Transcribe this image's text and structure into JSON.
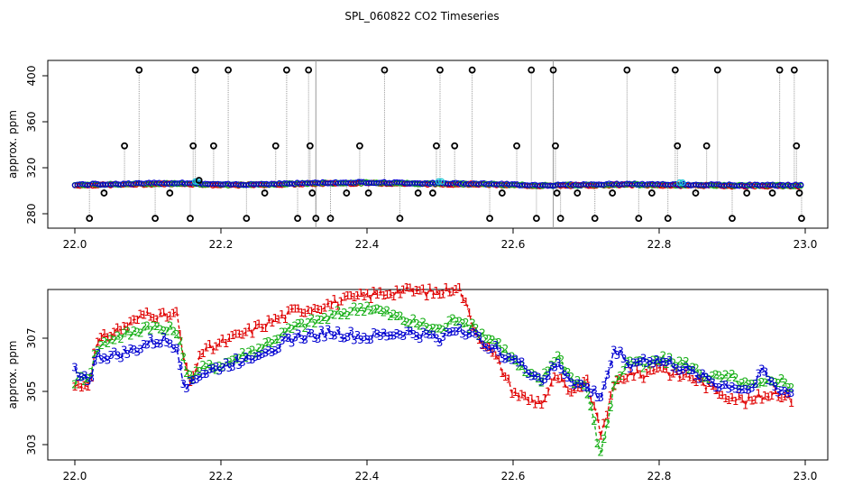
{
  "title": "SPL_060822  CO2 Timeseries",
  "colors": {
    "series1": "#e00000",
    "series2": "#1ab01a",
    "series3": "#0000d0",
    "cyan": "#20c8d8",
    "spike": "#000000",
    "spike_line": "#9a9a9a"
  },
  "chart_data": [
    {
      "type": "scatter",
      "title": "SPL_060822  CO2 Timeseries",
      "xlabel": "",
      "ylabel": "approx. ppm",
      "xlim": [
        22.0,
        23.0
      ],
      "ylim": [
        270,
        410
      ],
      "x_ticks": [
        "22.0",
        "22.2",
        "22.4",
        "22.6",
        "22.8",
        "23.0"
      ],
      "y_ticks": [
        "280",
        "320",
        "360",
        "400"
      ],
      "grid": false,
      "baseline": {
        "x": [
          22.0,
          22.05,
          22.1,
          22.15,
          22.2,
          22.25,
          22.3,
          22.33,
          22.4,
          22.45,
          22.5,
          22.55,
          22.6,
          22.65,
          22.7,
          22.75,
          22.8,
          22.85,
          22.9,
          22.95,
          22.99
        ],
        "y": [
          305,
          305.5,
          306,
          306.5,
          305,
          305.5,
          306,
          306.5,
          307,
          306.5,
          306,
          306,
          305,
          304.5,
          305,
          305.5,
          305,
          305,
          304.5,
          304.5,
          304.5
        ]
      },
      "spikes": {
        "x": [
          22.02,
          22.04,
          22.068,
          22.088,
          22.11,
          22.13,
          22.158,
          22.162,
          22.165,
          22.17,
          22.19,
          22.21,
          22.235,
          22.26,
          22.275,
          22.29,
          22.305,
          22.32,
          22.322,
          22.325,
          22.33,
          22.35,
          22.372,
          22.39,
          22.402,
          22.424,
          22.445,
          22.47,
          22.49,
          22.495,
          22.5,
          22.52,
          22.544,
          22.568,
          22.585,
          22.605,
          22.625,
          22.632,
          22.655,
          22.658,
          22.66,
          22.665,
          22.688,
          22.712,
          22.736,
          22.756,
          22.772,
          22.79,
          22.812,
          22.822,
          22.825,
          22.85,
          22.865,
          22.88,
          22.9,
          22.92,
          22.955,
          22.965,
          22.985,
          22.988,
          22.992,
          22.995
        ],
        "y": [
          276,
          298,
          339,
          405,
          276,
          298,
          276,
          339,
          405,
          309,
          339,
          405,
          276,
          298,
          339,
          405,
          276,
          405,
          339,
          298,
          276,
          276,
          298,
          339,
          298,
          405,
          276,
          298,
          298,
          339,
          405,
          339,
          405,
          276,
          298,
          339,
          405,
          276,
          405,
          339,
          298,
          276,
          298,
          276,
          298,
          405,
          276,
          298,
          276,
          405,
          339,
          298,
          339,
          405,
          276,
          298,
          298,
          405,
          405,
          339,
          298,
          276
        ]
      }
    },
    {
      "type": "line",
      "title": "",
      "xlabel": "",
      "ylabel": "approx. ppm",
      "xlim": [
        22.0,
        23.0
      ],
      "ylim": [
        302.5,
        309
      ],
      "x_ticks": [
        "22.0",
        "22.2",
        "22.4",
        "22.6",
        "22.8",
        "23.0"
      ],
      "y_ticks": [
        "303",
        "305",
        "307"
      ],
      "grid": false,
      "series": [
        {
          "marker": "1",
          "x": [
            22.0,
            22.02,
            22.03,
            22.05,
            22.08,
            22.1,
            22.12,
            22.14,
            22.15,
            22.16,
            22.17,
            22.2,
            22.25,
            22.3,
            22.35,
            22.4,
            22.45,
            22.5,
            22.525,
            22.55,
            22.58,
            22.6,
            22.62,
            22.64,
            22.66,
            22.68,
            22.7,
            22.72,
            22.74,
            22.76,
            22.78,
            22.8,
            22.82,
            22.84,
            22.86,
            22.88,
            22.9,
            22.92,
            22.94,
            22.96,
            22.98
          ],
          "y": [
            305.2,
            305.3,
            306.8,
            307.2,
            307.6,
            308.0,
            307.8,
            307.9,
            306.0,
            305.2,
            306.4,
            306.8,
            307.4,
            308.0,
            308.3,
            308.6,
            308.8,
            308.7,
            309.0,
            307.2,
            306.1,
            305.0,
            304.7,
            304.6,
            305.6,
            304.8,
            305.5,
            303.4,
            305.3,
            305.7,
            305.6,
            306.0,
            305.6,
            305.6,
            305.3,
            305.0,
            304.8,
            304.6,
            304.8,
            305.0,
            304.7
          ]
        },
        {
          "marker": "2",
          "x": [
            22.0,
            22.02,
            22.03,
            22.05,
            22.08,
            22.1,
            22.12,
            22.14,
            22.15,
            22.16,
            22.17,
            22.2,
            22.25,
            22.3,
            22.35,
            22.4,
            22.45,
            22.5,
            22.525,
            22.55,
            22.58,
            22.6,
            22.62,
            22.64,
            22.66,
            22.68,
            22.7,
            22.72,
            22.74,
            22.76,
            22.78,
            22.8,
            22.82,
            22.84,
            22.86,
            22.88,
            22.9,
            22.92,
            22.94,
            22.96,
            22.98
          ],
          "y": [
            305.4,
            305.6,
            306.6,
            307.0,
            307.2,
            307.5,
            307.3,
            307.3,
            306.0,
            305.5,
            305.8,
            306.0,
            306.6,
            307.4,
            307.8,
            308.2,
            307.7,
            307.3,
            307.8,
            307.3,
            306.8,
            306.2,
            305.6,
            305.4,
            306.4,
            305.5,
            305.2,
            302.6,
            305.4,
            306.2,
            305.9,
            306.2,
            306.1,
            306.0,
            305.6,
            305.5,
            305.5,
            305.2,
            305.2,
            305.5,
            305.2
          ]
        },
        {
          "marker": "3",
          "x": [
            22.0,
            22.02,
            22.03,
            22.05,
            22.08,
            22.1,
            22.12,
            22.14,
            22.15,
            22.16,
            22.17,
            22.2,
            22.25,
            22.3,
            22.35,
            22.4,
            22.45,
            22.5,
            22.525,
            22.55,
            22.58,
            22.6,
            22.62,
            22.64,
            22.66,
            22.68,
            22.7,
            22.72,
            22.74,
            22.76,
            22.78,
            22.8,
            22.82,
            22.84,
            22.86,
            22.88,
            22.9,
            22.92,
            22.94,
            22.96,
            22.98
          ],
          "y": [
            305.8,
            305.4,
            306.3,
            306.3,
            306.5,
            306.8,
            306.9,
            306.7,
            305.2,
            305.4,
            305.6,
            305.9,
            306.4,
            307.0,
            307.2,
            307.0,
            307.2,
            307.0,
            307.4,
            307.0,
            306.5,
            306.2,
            305.8,
            305.4,
            306.0,
            305.4,
            305.1,
            304.8,
            306.6,
            306.0,
            306.2,
            306.1,
            306.0,
            305.7,
            305.6,
            305.2,
            305.2,
            305.0,
            305.8,
            305.1,
            304.9
          ]
        }
      ]
    }
  ]
}
